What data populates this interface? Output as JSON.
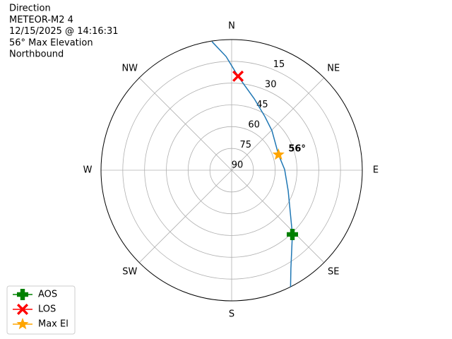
{
  "chart_data": {
    "type": "polar",
    "title_lines": [
      "Direction",
      "METEOR-M2 4",
      "12/15/2025 @ 14:16:31",
      "56° Max Elevation",
      "Northbound"
    ],
    "theta_zero": "N",
    "theta_direction": "clockwise",
    "rlim": [
      90,
      0
    ],
    "rticks": [
      15,
      30,
      45,
      60,
      75,
      90
    ],
    "thetaticks": [
      {
        "value": 0,
        "label": "N"
      },
      {
        "value": 45,
        "label": "NE"
      },
      {
        "value": 90,
        "label": "E"
      },
      {
        "value": 135,
        "label": "SE"
      },
      {
        "value": 180,
        "label": "S"
      },
      {
        "value": 225,
        "label": "SW"
      },
      {
        "value": 270,
        "label": "W"
      },
      {
        "value": 315,
        "label": "NW"
      }
    ],
    "grid": true,
    "legend": "lower left",
    "series": [
      {
        "color": "#1f77b4",
        "marker": "none",
        "theta": [
          153.2,
          148.9,
          136.6,
          125.4,
          109.9,
          89.2,
          71.6,
          45.5,
          31.7,
          17.6,
          3.9,
          357.2,
          351.3
        ],
        "r": [
          0,
          11,
          29.1,
          40.5,
          48.6,
          53.5,
          56,
          51.1,
          46.5,
          38.4,
          25.1,
          11.6,
          0.4
        ]
      },
      {
        "name": "AOS",
        "color": "green",
        "marker": "plus",
        "theta": [
          136.6
        ],
        "r": [
          29.1
        ]
      },
      {
        "name": "LOS",
        "color": "red",
        "marker": "x",
        "theta": [
          3.9
        ],
        "r": [
          25.1
        ]
      },
      {
        "name": "Max El",
        "color": "orange",
        "marker": "star",
        "theta": [
          71.6
        ],
        "r": [
          56
        ],
        "value_labels": [
          "56°"
        ]
      }
    ]
  }
}
